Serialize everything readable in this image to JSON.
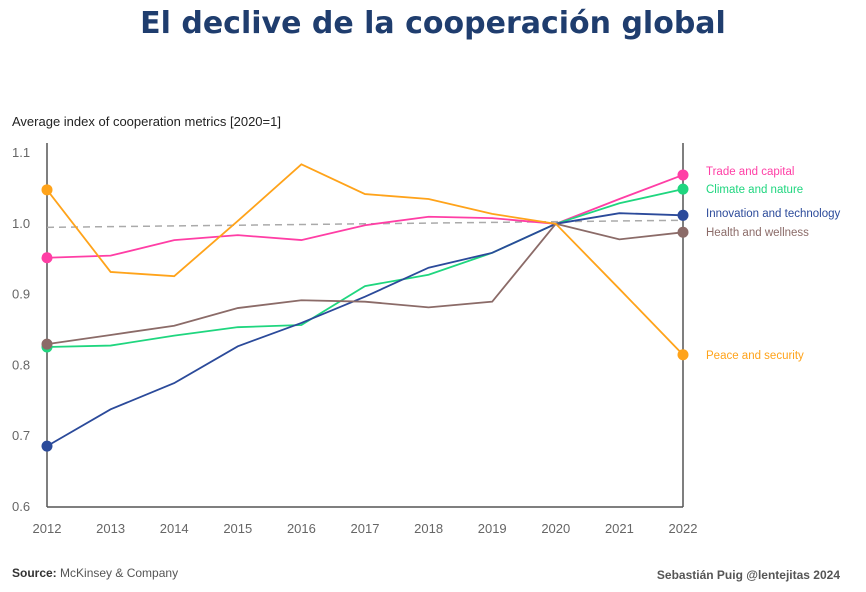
{
  "header": {
    "title": "El declive de la cooperación global"
  },
  "footer": {
    "source_label": "Source:",
    "source_value": "McKinsey & Company",
    "credit": "Sebastián Puig  @lentejitas 2024"
  },
  "chart_data": {
    "type": "line",
    "title": "El declive de la cooperación global",
    "ylabel": "Average index of cooperation metrics [2020=1]",
    "xlabel": "",
    "ylim": [
      0.6,
      1.1
    ],
    "yticks": [
      "0.6",
      "0.7",
      "0.8",
      "0.9",
      "1.0",
      "1.1"
    ],
    "x": [
      "2012",
      "2013",
      "2014",
      "2015",
      "2016",
      "2017",
      "2018",
      "2019",
      "2020",
      "2021",
      "2022"
    ],
    "reference_line": {
      "start": 0.995,
      "end": 1.005,
      "style": "dashed",
      "color": "#aaaaaa"
    },
    "legend_placement": "right (inline labels)",
    "series": [
      {
        "name": "Trade and capital",
        "color": "#ff3ea5",
        "values": [
          0.952,
          0.955,
          0.977,
          0.984,
          0.977,
          0.998,
          1.01,
          1.008,
          1.0,
          1.035,
          1.069
        ]
      },
      {
        "name": "Climate and nature",
        "color": "#1fd67f",
        "values": [
          0.826,
          0.828,
          0.842,
          0.854,
          0.857,
          0.912,
          0.928,
          0.959,
          1.0,
          1.029,
          1.049
        ]
      },
      {
        "name": "Innovation and technology",
        "color": "#2b4a9a",
        "values": [
          0.686,
          0.738,
          0.775,
          0.827,
          0.86,
          0.897,
          0.938,
          0.959,
          1.0,
          1.015,
          1.012
        ]
      },
      {
        "name": "Health and wellness",
        "color": "#8b6b68",
        "values": [
          0.83,
          0.843,
          0.856,
          0.881,
          0.892,
          0.89,
          0.882,
          0.89,
          1.0,
          0.978,
          0.988
        ]
      },
      {
        "name": "Peace and security",
        "color": "#ffa31a",
        "values": [
          1.048,
          0.932,
          0.926,
          1.004,
          1.084,
          1.042,
          1.035,
          1.014,
          1.0,
          0.908,
          0.815
        ]
      }
    ]
  }
}
